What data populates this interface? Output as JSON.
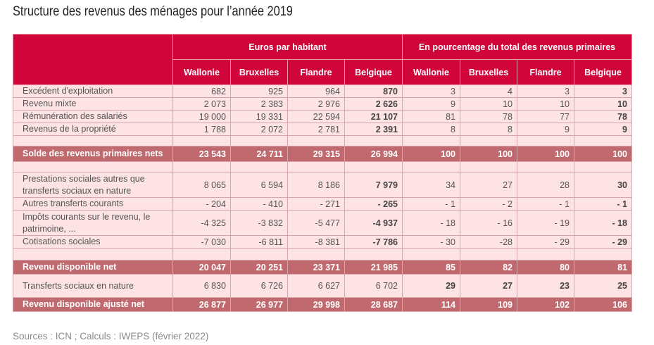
{
  "title": "Structure des revenus des ménages pour l’année 2019",
  "header": {
    "group1": "Euros par habitant",
    "group2": "En pourcentage du total des revenus primaires",
    "regions": [
      "Wallonie",
      "Bruxelles",
      "Flandre",
      "Belgique",
      "Wallonie",
      "Bruxelles",
      "Flandre",
      "Belgique"
    ]
  },
  "rows": {
    "r1": {
      "label": "Excédent d'exploitation",
      "v": [
        "682",
        "925",
        "964",
        "870",
        "3",
        "4",
        "3",
        "3"
      ]
    },
    "r2": {
      "label": "Revenu mixte",
      "v": [
        "2 073",
        "2 383",
        "2 976",
        "2 626",
        "9",
        "10",
        "10",
        "10"
      ]
    },
    "r3": {
      "label": "Rémunération des salariés",
      "v": [
        "19 000",
        "19 331",
        "22 594",
        "21 107",
        "81",
        "78",
        "77",
        "78"
      ]
    },
    "r4": {
      "label": "Revenus de la propriété",
      "v": [
        "1 788",
        "2 072",
        "2 781",
        "2 391",
        "8",
        "8",
        "9",
        "9"
      ]
    },
    "t1": {
      "label": "Solde des revenus primaires nets",
      "v": [
        "23 543",
        "24 711",
        "29 315",
        "26 994",
        "100",
        "100",
        "100",
        "100"
      ]
    },
    "r5": {
      "label": "Prestations sociales autres que transferts sociaux en nature",
      "v": [
        "8 065",
        "6 594",
        "8 186",
        "7 979",
        "34",
        "27",
        "28",
        "30"
      ]
    },
    "r6": {
      "label": "Autres transferts courants",
      "v": [
        "- 204",
        "- 410",
        "- 271",
        "- 265",
        "- 1",
        "- 2",
        "- 1",
        "- 1"
      ]
    },
    "r7": {
      "label": "Impôts courants sur le revenu, le patrimoine, ...",
      "v": [
        "-4 325",
        "-3 832",
        "-5 477",
        "-4 937",
        "- 18",
        "- 16",
        "- 19",
        "- 18"
      ]
    },
    "r8": {
      "label": "Cotisations sociales",
      "v": [
        "-7 030",
        "-6 811",
        "-8 381",
        "-7 786",
        "- 30",
        "-28",
        "- 29",
        "- 29"
      ]
    },
    "t2": {
      "label": "Revenu disponible net",
      "v": [
        "20 047",
        "20 251",
        "23 371",
        "21 985",
        "85",
        "82",
        "80",
        "81"
      ]
    },
    "r9": {
      "label": "Transferts sociaux en nature",
      "v": [
        "6 830",
        "6 726",
        "6 627",
        "6 702",
        "29",
        "27",
        "23",
        "25"
      ]
    },
    "t3": {
      "label": "Revenu disponible ajusté net",
      "v": [
        "26 877",
        "26 977",
        "29 998",
        "28 687",
        "114",
        "109",
        "102",
        "106"
      ]
    }
  },
  "source": "Sources : ICN ; Calculs : IWEPS (février 2022)",
  "colors": {
    "header": "#d0063a",
    "total_row": "#c0696e",
    "row_bg": "#fde3e3"
  }
}
